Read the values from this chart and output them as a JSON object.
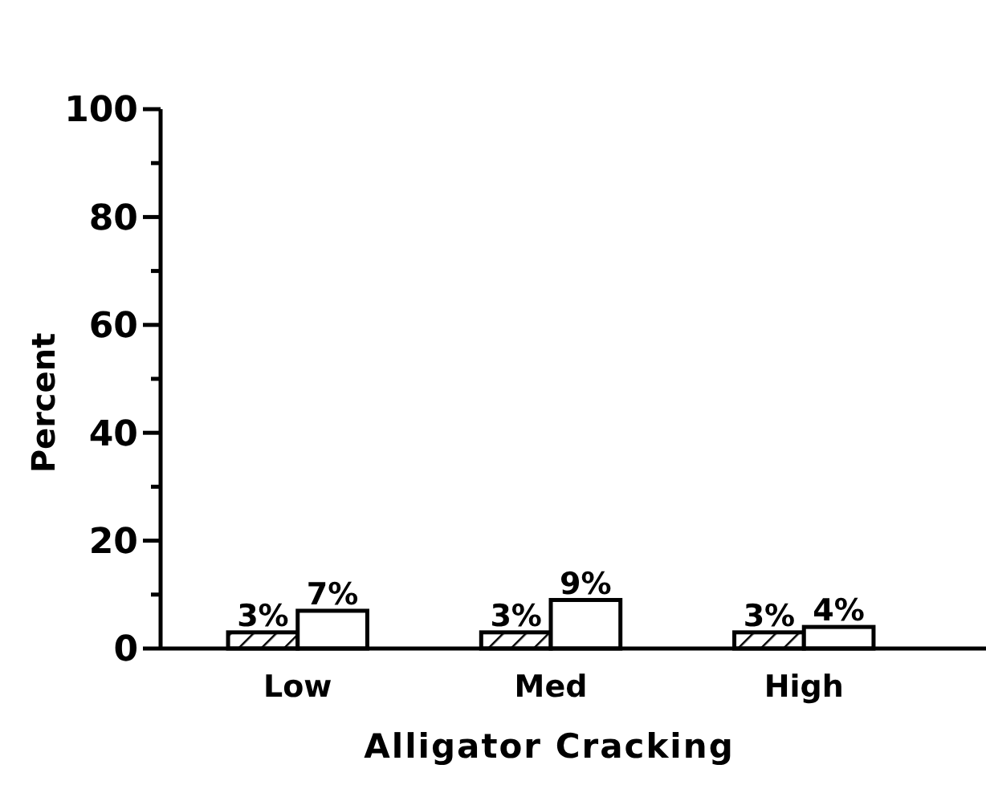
{
  "chart_data": {
    "type": "bar",
    "xlabel": "Alligator Cracking",
    "ylabel": "Percent",
    "categories": [
      "Low",
      "Med",
      "High"
    ],
    "series": [
      {
        "color": "#000000",
        "values": [
          3,
          3,
          3
        ],
        "value_labels": [
          "3%",
          "3%",
          "3%"
        ]
      },
      {
        "color": "#ffffff",
        "values": [
          7,
          9,
          4
        ],
        "value_labels": [
          "7%",
          "9%",
          "4%"
        ]
      }
    ],
    "ylim": [
      0,
      100
    ],
    "yticks": [
      0,
      {
        "value": 10,
        "label": null
      },
      20,
      {
        "value": 30,
        "label": null
      },
      40,
      {
        "value": 50,
        "label": null
      },
      60,
      {
        "value": 70,
        "label": null
      },
      80,
      {
        "value": 90,
        "label": null
      },
      100
    ],
    "grid": false
  }
}
